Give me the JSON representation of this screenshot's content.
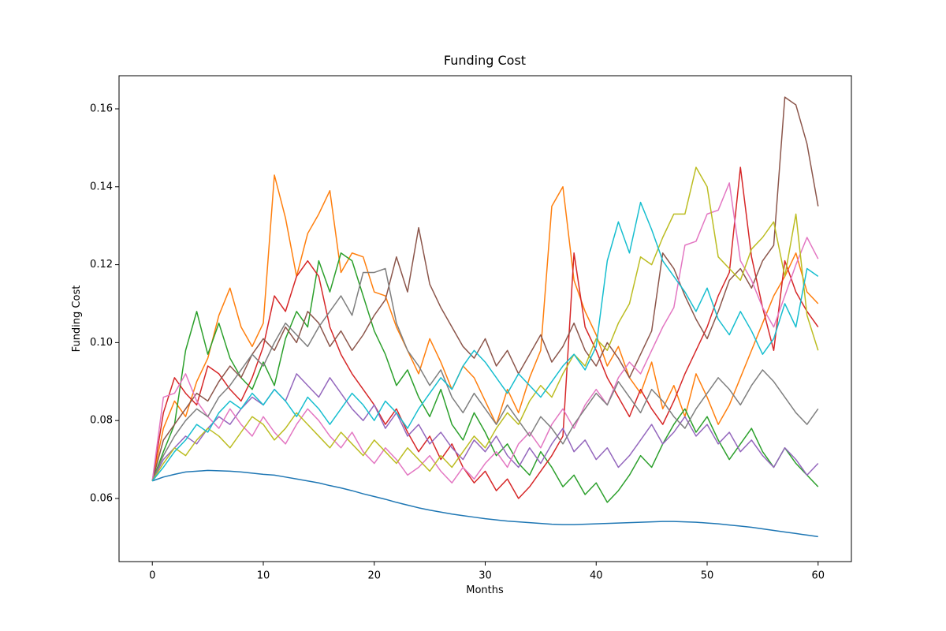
{
  "chart_data": {
    "type": "line",
    "title": "Funding Cost",
    "x_label": "Months",
    "y_label": "Funding Cost",
    "xlim": [
      -3,
      63
    ],
    "ylim": [
      0.0438,
      0.1685
    ],
    "xticks": [
      0,
      10,
      20,
      30,
      40,
      50,
      60
    ],
    "yticks": [
      0.06,
      0.08,
      {
        "value": 0.1,
        "label": "0.10"
      },
      0.12,
      0.14,
      0.16
    ],
    "grid": false,
    "x": [
      0,
      1,
      2,
      3,
      4,
      5,
      6,
      7,
      8,
      9,
      10,
      11,
      12,
      13,
      14,
      15,
      16,
      17,
      18,
      19,
      20,
      21,
      22,
      23,
      24,
      25,
      26,
      27,
      28,
      29,
      30,
      31,
      32,
      33,
      34,
      35,
      36,
      37,
      38,
      39,
      40,
      41,
      42,
      43,
      44,
      45,
      46,
      47,
      48,
      49,
      50,
      51,
      52,
      53,
      54,
      55,
      56,
      57,
      58,
      59,
      60
    ],
    "series": [
      {
        "color": "#1f77b4",
        "values": [
          0.0645,
          0.0655,
          0.0662,
          0.0668,
          0.067,
          0.0672,
          0.0671,
          0.067,
          0.0668,
          0.0665,
          0.0662,
          0.066,
          0.0655,
          0.065,
          0.0645,
          0.064,
          0.0633,
          0.0627,
          0.062,
          0.0612,
          0.0605,
          0.0598,
          0.059,
          0.0583,
          0.0576,
          0.057,
          0.0565,
          0.056,
          0.0556,
          0.0552,
          0.0548,
          0.0545,
          0.0542,
          0.054,
          0.0538,
          0.0536,
          0.0534,
          0.0533,
          0.0533,
          0.0534,
          0.0535,
          0.0536,
          0.0537,
          0.0538,
          0.0539,
          0.054,
          0.0541,
          0.0541,
          0.054,
          0.0539,
          0.0537,
          0.0535,
          0.0532,
          0.0529,
          0.0526,
          0.0522,
          0.0518,
          0.0514,
          0.051,
          0.0506,
          0.0502
        ]
      },
      {
        "color": "#ff7f0e",
        "values": [
          0.0645,
          0.078,
          0.085,
          0.081,
          0.09,
          0.096,
          0.107,
          0.114,
          0.104,
          0.099,
          0.105,
          0.143,
          0.132,
          0.117,
          0.128,
          0.133,
          0.139,
          0.118,
          0.123,
          0.122,
          0.113,
          0.112,
          0.104,
          0.098,
          0.092,
          0.101,
          0.095,
          0.088,
          0.094,
          0.091,
          0.085,
          0.079,
          0.088,
          0.082,
          0.091,
          0.098,
          0.135,
          0.14,
          0.116,
          0.108,
          0.102,
          0.094,
          0.099,
          0.091,
          0.087,
          0.095,
          0.083,
          0.089,
          0.081,
          0.092,
          0.086,
          0.079,
          0.084,
          0.091,
          0.098,
          0.105,
          0.112,
          0.117,
          0.123,
          0.113,
          0.11
        ]
      },
      {
        "color": "#2ca02c",
        "values": [
          0.0645,
          0.072,
          0.079,
          0.098,
          0.108,
          0.097,
          0.105,
          0.096,
          0.091,
          0.088,
          0.095,
          0.089,
          0.101,
          0.108,
          0.104,
          0.121,
          0.113,
          0.123,
          0.121,
          0.112,
          0.103,
          0.097,
          0.089,
          0.093,
          0.086,
          0.081,
          0.088,
          0.079,
          0.075,
          0.082,
          0.077,
          0.071,
          0.074,
          0.069,
          0.066,
          0.072,
          0.068,
          0.063,
          0.066,
          0.061,
          0.064,
          0.059,
          0.062,
          0.066,
          0.071,
          0.068,
          0.074,
          0.079,
          0.083,
          0.077,
          0.081,
          0.075,
          0.07,
          0.074,
          0.078,
          0.072,
          0.068,
          0.073,
          0.069,
          0.066,
          0.063
        ]
      },
      {
        "color": "#d62728",
        "values": [
          0.0645,
          0.082,
          0.091,
          0.087,
          0.084,
          0.094,
          0.092,
          0.088,
          0.085,
          0.091,
          0.099,
          0.112,
          0.108,
          0.117,
          0.121,
          0.117,
          0.104,
          0.097,
          0.092,
          0.088,
          0.084,
          0.079,
          0.083,
          0.077,
          0.072,
          0.076,
          0.07,
          0.074,
          0.068,
          0.064,
          0.067,
          0.062,
          0.065,
          0.06,
          0.063,
          0.067,
          0.071,
          0.076,
          0.123,
          0.104,
          0.098,
          0.091,
          0.086,
          0.081,
          0.088,
          0.083,
          0.079,
          0.085,
          0.092,
          0.098,
          0.104,
          0.112,
          0.118,
          0.145,
          0.122,
          0.109,
          0.098,
          0.121,
          0.113,
          0.108,
          0.104
        ]
      },
      {
        "color": "#9467bd",
        "values": [
          0.0645,
          0.07,
          0.073,
          0.076,
          0.074,
          0.078,
          0.081,
          0.079,
          0.083,
          0.086,
          0.084,
          0.088,
          0.085,
          0.092,
          0.089,
          0.086,
          0.091,
          0.087,
          0.083,
          0.08,
          0.084,
          0.078,
          0.082,
          0.076,
          0.079,
          0.074,
          0.077,
          0.073,
          0.07,
          0.075,
          0.072,
          0.076,
          0.071,
          0.068,
          0.073,
          0.069,
          0.074,
          0.078,
          0.072,
          0.075,
          0.07,
          0.073,
          0.068,
          0.071,
          0.075,
          0.079,
          0.074,
          0.077,
          0.081,
          0.076,
          0.079,
          0.074,
          0.077,
          0.072,
          0.075,
          0.071,
          0.068,
          0.073,
          0.07,
          0.066,
          0.069
        ]
      },
      {
        "color": "#8c564b",
        "values": [
          0.0645,
          0.075,
          0.079,
          0.083,
          0.087,
          0.085,
          0.09,
          0.094,
          0.091,
          0.097,
          0.101,
          0.098,
          0.104,
          0.1,
          0.108,
          0.105,
          0.099,
          0.103,
          0.098,
          0.102,
          0.107,
          0.111,
          0.122,
          0.113,
          0.1295,
          0.115,
          0.109,
          0.104,
          0.099,
          0.096,
          0.101,
          0.094,
          0.098,
          0.092,
          0.097,
          0.102,
          0.095,
          0.099,
          0.105,
          0.098,
          0.094,
          0.1,
          0.096,
          0.091,
          0.097,
          0.103,
          0.123,
          0.119,
          0.112,
          0.106,
          0.101,
          0.108,
          0.116,
          0.119,
          0.114,
          0.121,
          0.125,
          0.163,
          0.161,
          0.151,
          0.135
        ]
      },
      {
        "color": "#e377c2",
        "values": [
          0.0645,
          0.086,
          0.087,
          0.092,
          0.085,
          0.081,
          0.078,
          0.083,
          0.079,
          0.076,
          0.081,
          0.077,
          0.074,
          0.079,
          0.083,
          0.08,
          0.076,
          0.073,
          0.077,
          0.072,
          0.069,
          0.073,
          0.07,
          0.066,
          0.068,
          0.071,
          0.067,
          0.064,
          0.068,
          0.065,
          0.069,
          0.072,
          0.068,
          0.074,
          0.077,
          0.073,
          0.079,
          0.083,
          0.078,
          0.084,
          0.088,
          0.084,
          0.091,
          0.095,
          0.092,
          0.098,
          0.104,
          0.109,
          0.125,
          0.126,
          0.133,
          0.134,
          0.141,
          0.121,
          0.116,
          0.109,
          0.104,
          0.112,
          0.12,
          0.127,
          0.1215
        ]
      },
      {
        "color": "#7f7f7f",
        "values": [
          0.0645,
          0.071,
          0.076,
          0.08,
          0.083,
          0.081,
          0.086,
          0.089,
          0.093,
          0.097,
          0.094,
          0.1,
          0.105,
          0.102,
          0.099,
          0.104,
          0.108,
          0.112,
          0.107,
          0.118,
          0.118,
          0.119,
          0.105,
          0.098,
          0.094,
          0.089,
          0.093,
          0.086,
          0.082,
          0.087,
          0.083,
          0.079,
          0.084,
          0.08,
          0.076,
          0.081,
          0.078,
          0.074,
          0.079,
          0.083,
          0.087,
          0.084,
          0.09,
          0.086,
          0.082,
          0.088,
          0.085,
          0.081,
          0.078,
          0.083,
          0.087,
          0.091,
          0.088,
          0.084,
          0.089,
          0.093,
          0.09,
          0.086,
          0.082,
          0.079,
          0.083
        ]
      },
      {
        "color": "#bcbd22",
        "values": [
          0.0645,
          0.069,
          0.073,
          0.071,
          0.075,
          0.078,
          0.076,
          0.073,
          0.077,
          0.081,
          0.079,
          0.075,
          0.078,
          0.082,
          0.079,
          0.076,
          0.073,
          0.077,
          0.074,
          0.071,
          0.075,
          0.072,
          0.069,
          0.073,
          0.07,
          0.067,
          0.071,
          0.068,
          0.072,
          0.076,
          0.073,
          0.078,
          0.082,
          0.079,
          0.085,
          0.089,
          0.086,
          0.092,
          0.097,
          0.094,
          0.101,
          0.098,
          0.105,
          0.11,
          0.122,
          0.12,
          0.127,
          0.133,
          0.133,
          0.145,
          0.14,
          0.122,
          0.119,
          0.116,
          0.124,
          0.127,
          0.131,
          0.117,
          0.133,
          0.107,
          0.098
        ]
      },
      {
        "color": "#17becf",
        "values": [
          0.0645,
          0.068,
          0.072,
          0.075,
          0.079,
          0.077,
          0.082,
          0.085,
          0.083,
          0.087,
          0.084,
          0.088,
          0.085,
          0.081,
          0.086,
          0.083,
          0.079,
          0.083,
          0.087,
          0.084,
          0.08,
          0.085,
          0.082,
          0.078,
          0.083,
          0.087,
          0.091,
          0.088,
          0.094,
          0.098,
          0.095,
          0.091,
          0.087,
          0.092,
          0.089,
          0.086,
          0.09,
          0.094,
          0.097,
          0.093,
          0.099,
          0.121,
          0.131,
          0.123,
          0.136,
          0.129,
          0.121,
          0.117,
          0.113,
          0.108,
          0.114,
          0.106,
          0.102,
          0.108,
          0.103,
          0.097,
          0.101,
          0.11,
          0.104,
          0.119,
          0.117
        ]
      }
    ]
  }
}
